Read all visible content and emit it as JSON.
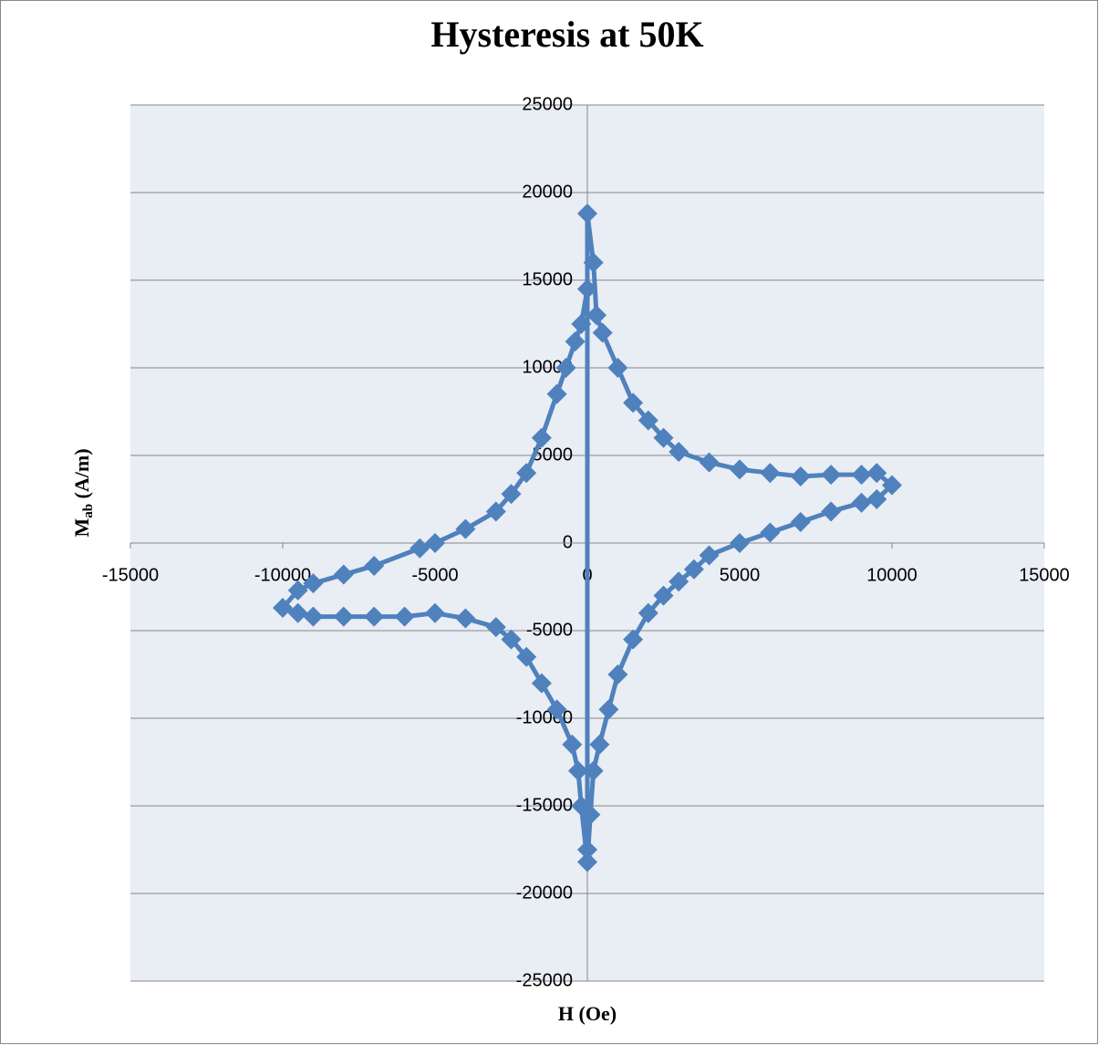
{
  "chart_data": {
    "type": "scatter",
    "title": "Hysteresis at 50K",
    "x_label": "H (Oe)",
    "y_label": [
      "M",
      "ab",
      " (A/m)"
    ],
    "xlim": [
      -15000,
      15000
    ],
    "ylim": [
      -25000,
      25000
    ],
    "xticks": [
      -15000,
      -10000,
      -5000,
      0,
      5000,
      10000,
      15000
    ],
    "yticks": [
      -25000,
      -20000,
      -15000,
      -10000,
      -5000,
      0,
      5000,
      10000,
      15000,
      20000,
      25000
    ],
    "grid": true,
    "series": [
      {
        "color": "#4f81bd",
        "x": [
          0,
          0,
          200,
          300,
          500,
          1000,
          1500,
          2000,
          2500,
          3000,
          4000,
          5000,
          6000,
          7000,
          8000,
          9000,
          9500,
          10000,
          9500,
          9000,
          8000,
          7000,
          6000,
          5000,
          4000,
          3500,
          3000,
          2500,
          2000,
          1500,
          1000,
          700,
          400,
          200,
          100,
          0,
          -200,
          -300,
          -500,
          -1000,
          -1500,
          -2000,
          -2500,
          -3000,
          -4000,
          -5000,
          -6000,
          -7000,
          -8000,
          -9000,
          -9500,
          -10000,
          -9500,
          -9000,
          -8000,
          -7000,
          -5500,
          -5000,
          -4000,
          -3000,
          -2500,
          -2000,
          -1500,
          -1000,
          -700,
          -400,
          -200,
          0
        ],
        "y": [
          -17500,
          18800,
          16000,
          13000,
          12000,
          10000,
          8000,
          7000,
          6000,
          5200,
          4600,
          4200,
          4000,
          3800,
          3900,
          3900,
          4000,
          3300,
          2500,
          2300,
          1800,
          1200,
          600,
          0,
          -700,
          -1500,
          -2200,
          -3000,
          -4000,
          -5500,
          -7500,
          -9500,
          -11500,
          -13000,
          -15500,
          -18200,
          -15000,
          -13000,
          -11500,
          -9500,
          -8000,
          -6500,
          -5500,
          -4800,
          -4300,
          -4000,
          -4200,
          -4200,
          -4200,
          -4200,
          -4000,
          -3700,
          -2700,
          -2300,
          -1800,
          -1300,
          -300,
          0,
          800,
          1800,
          2800,
          4000,
          6000,
          8500,
          10000,
          11500,
          12500,
          14500
        ]
      }
    ]
  }
}
